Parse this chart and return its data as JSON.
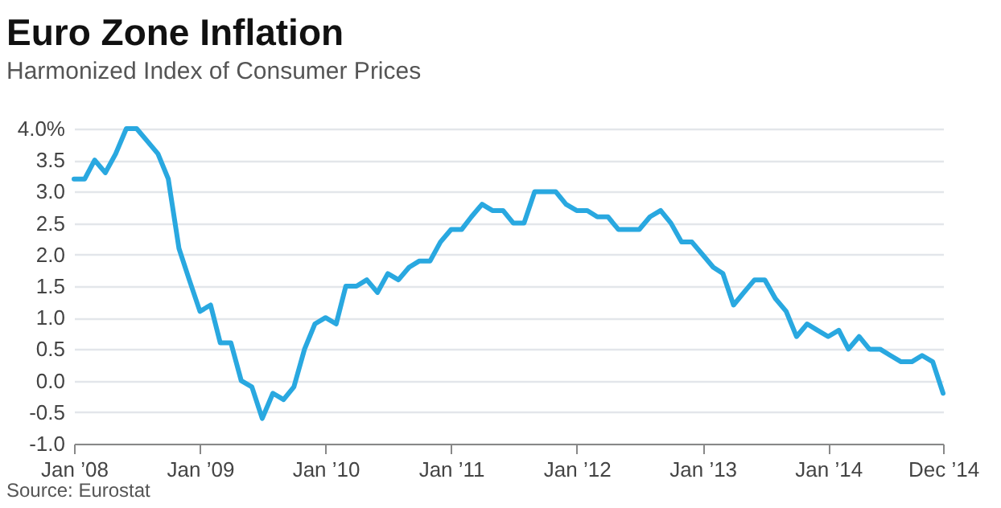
{
  "chart_data": {
    "type": "line",
    "title": "Euro Zone Inflation",
    "subtitle": "Harmonized Index of Consumer Prices",
    "annotations": [
      "Source: Eurostat"
    ],
    "x": [
      "2008-01",
      "2008-02",
      "2008-03",
      "2008-04",
      "2008-05",
      "2008-06",
      "2008-07",
      "2008-08",
      "2008-09",
      "2008-10",
      "2008-11",
      "2008-12",
      "2009-01",
      "2009-02",
      "2009-03",
      "2009-04",
      "2009-05",
      "2009-06",
      "2009-07",
      "2009-08",
      "2009-09",
      "2009-10",
      "2009-11",
      "2009-12",
      "2010-01",
      "2010-02",
      "2010-03",
      "2010-04",
      "2010-05",
      "2010-06",
      "2010-07",
      "2010-08",
      "2010-09",
      "2010-10",
      "2010-11",
      "2010-12",
      "2011-01",
      "2011-02",
      "2011-03",
      "2011-04",
      "2011-05",
      "2011-06",
      "2011-07",
      "2011-08",
      "2011-09",
      "2011-10",
      "2011-11",
      "2011-12",
      "2012-01",
      "2012-02",
      "2012-03",
      "2012-04",
      "2012-05",
      "2012-06",
      "2012-07",
      "2012-08",
      "2012-09",
      "2012-10",
      "2012-11",
      "2012-12",
      "2013-01",
      "2013-02",
      "2013-03",
      "2013-04",
      "2013-05",
      "2013-06",
      "2013-07",
      "2013-08",
      "2013-09",
      "2013-10",
      "2013-11",
      "2013-12",
      "2014-01",
      "2014-02",
      "2014-03",
      "2014-04",
      "2014-05",
      "2014-06",
      "2014-07",
      "2014-08",
      "2014-09",
      "2014-10",
      "2014-11",
      "2014-12"
    ],
    "series": [
      {
        "color": "#29a8e0",
        "values": [
          3.2,
          3.2,
          3.5,
          3.3,
          3.6,
          4.0,
          4.0,
          3.8,
          3.6,
          3.2,
          2.1,
          1.6,
          1.1,
          1.2,
          0.6,
          0.6,
          0.0,
          -0.1,
          -0.6,
          -0.2,
          -0.3,
          -0.1,
          0.5,
          0.9,
          1.0,
          0.9,
          1.5,
          1.5,
          1.6,
          1.4,
          1.7,
          1.6,
          1.8,
          1.9,
          1.9,
          2.2,
          2.4,
          2.4,
          2.6,
          2.8,
          2.7,
          2.7,
          2.5,
          2.5,
          3.0,
          3.0,
          3.0,
          2.8,
          2.7,
          2.7,
          2.6,
          2.6,
          2.4,
          2.4,
          2.4,
          2.6,
          2.7,
          2.5,
          2.2,
          2.2,
          2.0,
          1.8,
          1.7,
          1.2,
          1.4,
          1.6,
          1.6,
          1.3,
          1.1,
          0.7,
          0.9,
          0.8,
          0.7,
          0.8,
          0.5,
          0.7,
          0.5,
          0.5,
          0.4,
          0.3,
          0.3,
          0.4,
          0.3,
          -0.2
        ]
      }
    ],
    "xlim": [
      "2008-01",
      "2014-12"
    ],
    "xticks": [
      {
        "value": "2008-01",
        "label": "Jan ’08"
      },
      {
        "value": "2009-01",
        "label": "Jan ’09"
      },
      {
        "value": "2010-01",
        "label": "Jan ’10"
      },
      {
        "value": "2011-01",
        "label": "Jan ’11"
      },
      {
        "value": "2012-01",
        "label": "Jan ’12"
      },
      {
        "value": "2013-01",
        "label": "Jan ’13"
      },
      {
        "value": "2014-01",
        "label": "Jan ’14"
      },
      {
        "value": "2014-12",
        "label": "Dec ’14"
      }
    ],
    "ylim": [
      -1,
      4
    ],
    "yticks": [
      {
        "value": -1,
        "label": "-1.0"
      },
      {
        "value": -0.5,
        "label": "-0.5"
      },
      {
        "value": 0,
        "label": "0.0"
      },
      {
        "value": 0.5,
        "label": "0.5"
      },
      {
        "value": 1,
        "label": "1.0"
      },
      {
        "value": 1.5,
        "label": "1.5"
      },
      {
        "value": 2,
        "label": "2.0"
      },
      {
        "value": 2.5,
        "label": "2.5"
      },
      {
        "value": 3,
        "label": "3.0"
      },
      {
        "value": 3.5,
        "label": "3.5"
      },
      {
        "value": 4,
        "label": "4.0%"
      }
    ],
    "grid": "y",
    "marker": "none",
    "line_style": "solid"
  }
}
